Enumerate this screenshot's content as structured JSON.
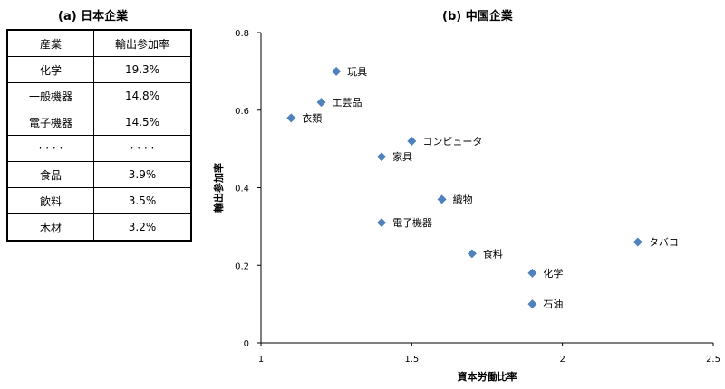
{
  "panel_a": {
    "title": "(a) 日本企業",
    "table": {
      "headers": [
        "産業",
        "輸出参加率"
      ],
      "rows": [
        [
          "化学",
          "19.3%"
        ],
        [
          "一般機器",
          "14.8%"
        ],
        [
          "電子機器",
          "14.5%"
        ],
        [
          "· · · ·",
          "· · · ·"
        ],
        [
          "食品",
          "3.9%"
        ],
        [
          "飲料",
          "3.5%"
        ],
        [
          "木材",
          "3.2%"
        ]
      ]
    }
  },
  "panel_b": {
    "title": "(b) 中国企業"
  },
  "chart_data": {
    "type": "scatter",
    "title": "(b) 中国企業",
    "xlabel": "資本労働比率",
    "ylabel": "輸出参加率",
    "xlim": [
      1,
      2.5
    ],
    "ylim": [
      0,
      0.8
    ],
    "xticks": [
      1,
      1.5,
      2,
      2.5
    ],
    "yticks": [
      0,
      0.2,
      0.4,
      0.6,
      0.8
    ],
    "x_tick_labels": [
      "1",
      "1.5",
      "2",
      "2.5"
    ],
    "y_tick_labels": [
      "0",
      "0.2",
      "0.4",
      "0.6",
      "0.8"
    ],
    "grid": false,
    "marker": "diamond",
    "marker_color": "#4f81bd",
    "points": [
      {
        "label": "玩具",
        "x": 1.25,
        "y": 0.7
      },
      {
        "label": "工芸品",
        "x": 1.2,
        "y": 0.62
      },
      {
        "label": "衣類",
        "x": 1.1,
        "y": 0.58
      },
      {
        "label": "コンピュータ",
        "x": 1.5,
        "y": 0.52
      },
      {
        "label": "家具",
        "x": 1.4,
        "y": 0.48
      },
      {
        "label": "織物",
        "x": 1.6,
        "y": 0.37
      },
      {
        "label": "電子機器",
        "x": 1.4,
        "y": 0.31
      },
      {
        "label": "タバコ",
        "x": 2.25,
        "y": 0.26
      },
      {
        "label": "食料",
        "x": 1.7,
        "y": 0.23
      },
      {
        "label": "化学",
        "x": 1.9,
        "y": 0.18
      },
      {
        "label": "石油",
        "x": 1.9,
        "y": 0.1
      }
    ]
  }
}
